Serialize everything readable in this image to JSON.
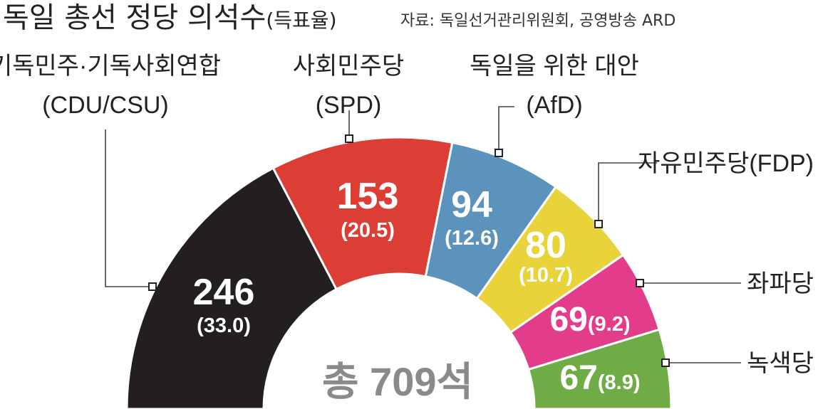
{
  "title": "독일 총선 정당 의석수",
  "title_suffix": "(득표율)",
  "source": "자료: 독일선거관리위원회, 공영방송 ARD",
  "total_label": "총 709석",
  "chart_data": {
    "type": "pie",
    "subtype": "semicircle",
    "total_seats": 709,
    "series": [
      {
        "name": "기독민주·기독사회연합",
        "abbr": "(CDU/CSU)",
        "seats": 246,
        "seats_label": "246",
        "pct_label": "(33.0)",
        "share": 33.0,
        "color": "#231f20"
      },
      {
        "name": "사회민주당",
        "abbr": "(SPD)",
        "seats": 153,
        "seats_label": "153",
        "pct_label": "(20.5)",
        "share": 20.5,
        "color": "#dc3e36"
      },
      {
        "name": "독일을 위한 대안",
        "abbr": "(AfD)",
        "seats": 94,
        "seats_label": "94",
        "pct_label": "(12.6)",
        "share": 12.6,
        "color": "#5b93bd"
      },
      {
        "name": "자유민주당(FDP)",
        "abbr": "",
        "seats": 80,
        "seats_label": "80",
        "pct_label": "(10.7)",
        "share": 10.7,
        "color": "#e8d43a"
      },
      {
        "name": "좌파당",
        "abbr": "",
        "seats": 69,
        "seats_label": "69",
        "pct_label": "(9.2)",
        "share": 9.2,
        "color": "#e23c8b"
      },
      {
        "name": "녹색당",
        "abbr": "",
        "seats": 67,
        "seats_label": "67",
        "pct_label": "(8.9)",
        "share": 8.9,
        "color": "#6fac45"
      }
    ]
  }
}
